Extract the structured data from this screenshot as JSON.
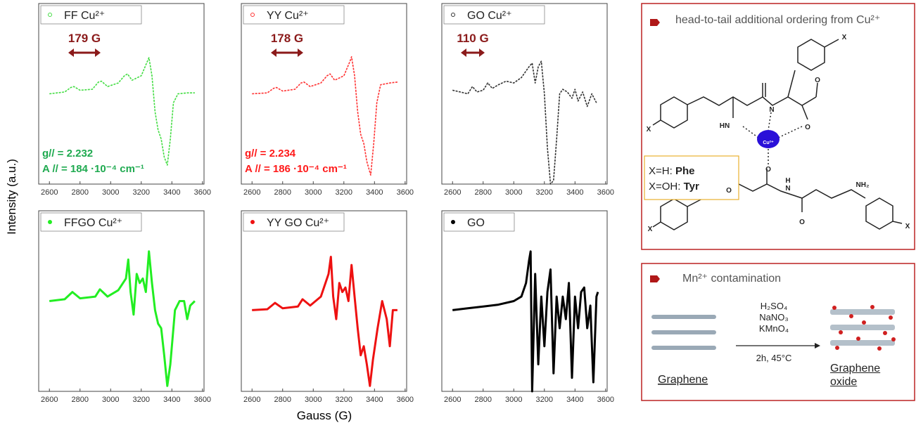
{
  "figure": {
    "ylabel": "Intensity (a.u.)",
    "xlabel": "Gauss (G)"
  },
  "chart_data": [
    {
      "type": "line",
      "legend": "FF Cu²⁺",
      "color": "#44dd44",
      "marker_fill": false,
      "spacing": "179 G",
      "g_factor": "g// = 2.232",
      "a_factor": "A // = 184 ·10⁻⁴ cm⁻¹",
      "annotation_color": "#1faa50",
      "x": [
        2600,
        2700,
        2740,
        2760,
        2800,
        2880,
        2920,
        2940,
        2980,
        3050,
        3090,
        3110,
        3140,
        3200,
        3240,
        3250,
        3270,
        3290,
        3310,
        3330,
        3350,
        3370,
        3390,
        3410,
        3440,
        3500,
        3550
      ],
      "values": [
        0,
        0.02,
        0.07,
        0.08,
        0.04,
        0.05,
        0.13,
        0.14,
        0.08,
        0.12,
        0.2,
        0.22,
        0.15,
        0.2,
        0.36,
        0.4,
        0.2,
        -0.2,
        -0.4,
        -0.5,
        -0.7,
        -0.79,
        -0.5,
        -0.1,
        0,
        0.01,
        0.01
      ],
      "xlim": [
        2530,
        3610
      ],
      "xticks": [
        2600,
        2800,
        3000,
        3200,
        3400,
        3600
      ],
      "ylim": [
        -1,
        1
      ]
    },
    {
      "type": "line",
      "legend": "YY Cu²⁺",
      "color": "#ff3333",
      "marker_fill": false,
      "spacing": "178 G",
      "g_factor": "g// = 2.234",
      "a_factor": "A // = 186 ·10⁻⁴ cm⁻¹",
      "annotation_color": "#ff1a1a",
      "x": [
        2600,
        2700,
        2740,
        2760,
        2800,
        2880,
        2920,
        2940,
        2980,
        3050,
        3090,
        3110,
        3140,
        3200,
        3240,
        3250,
        3270,
        3290,
        3310,
        3330,
        3350,
        3375,
        3395,
        3415,
        3440,
        3500,
        3550
      ],
      "values": [
        0,
        0.01,
        0.06,
        0.07,
        0.03,
        0.05,
        0.12,
        0.13,
        0.08,
        0.12,
        0.2,
        0.22,
        0.15,
        0.2,
        0.36,
        0.41,
        0.2,
        -0.2,
        -0.45,
        -0.55,
        -0.75,
        -0.9,
        -0.55,
        -0.1,
        0.1,
        0.12,
        0.13
      ],
      "xlim": [
        2530,
        3610
      ],
      "xticks": [
        2600,
        2800,
        3000,
        3200,
        3400,
        3600
      ],
      "ylim": [
        -1,
        1
      ]
    },
    {
      "type": "line",
      "legend": "GO Cu²⁺",
      "color": "#333333",
      "marker_fill": false,
      "spacing": "110 G",
      "annotation_color": "#8b1a1a",
      "x": [
        2600,
        2650,
        2700,
        2730,
        2760,
        2800,
        2830,
        2860,
        2900,
        2950,
        3000,
        3050,
        3100,
        3120,
        3140,
        3160,
        3180,
        3200,
        3220,
        3240,
        3260,
        3280,
        3300,
        3320,
        3350,
        3380,
        3400,
        3420,
        3450,
        3480,
        3510,
        3540
      ],
      "values": [
        0.04,
        0.02,
        0,
        0.08,
        0.02,
        0.04,
        0.12,
        0.06,
        0.1,
        0.14,
        0.12,
        0.18,
        0.3,
        0.34,
        0.12,
        0.3,
        0.36,
        0,
        -0.6,
        -1,
        -0.96,
        -0.5,
        0,
        0.05,
        0.02,
        -0.05,
        0.05,
        -0.08,
        0.02,
        -0.14,
        0,
        -0.1
      ],
      "xlim": [
        2530,
        3610
      ],
      "xticks": [
        2600,
        2800,
        3000,
        3200,
        3400,
        3600
      ],
      "ylim": [
        -1,
        1
      ]
    },
    {
      "type": "line",
      "legend": "FFGO Cu²⁺",
      "color": "#22ee22",
      "marker_fill": true,
      "x": [
        2600,
        2700,
        2750,
        2800,
        2900,
        2930,
        2980,
        3050,
        3100,
        3115,
        3130,
        3150,
        3170,
        3190,
        3210,
        3230,
        3250,
        3270,
        3290,
        3310,
        3330,
        3350,
        3370,
        3390,
        3420,
        3450,
        3480,
        3500,
        3520,
        3550
      ],
      "values": [
        0,
        0.02,
        0.1,
        0.03,
        0.05,
        0.13,
        0.05,
        0.12,
        0.25,
        0.46,
        0.1,
        -0.15,
        0.3,
        0.2,
        0.25,
        0.1,
        0.55,
        0.2,
        -0.1,
        -0.25,
        -0.3,
        -0.6,
        -0.94,
        -0.7,
        -0.1,
        0,
        0,
        -0.2,
        -0.05,
        0
      ],
      "xlim": [
        2530,
        3610
      ],
      "xticks": [
        2600,
        2800,
        3000,
        3200,
        3400,
        3600
      ],
      "ylim": [
        -1,
        1
      ]
    },
    {
      "type": "line",
      "legend": "YY GO Cu²⁺",
      "color": "#ee1111",
      "marker_fill": true,
      "x": [
        2600,
        2700,
        2750,
        2800,
        2900,
        2930,
        2980,
        3050,
        3100,
        3115,
        3130,
        3150,
        3170,
        3190,
        3210,
        3230,
        3250,
        3270,
        3290,
        3310,
        3330,
        3350,
        3370,
        3390,
        3420,
        3450,
        3480,
        3500,
        3520,
        3550
      ],
      "values": [
        -0.1,
        -0.09,
        -0.02,
        -0.08,
        -0.06,
        0.02,
        -0.05,
        0.05,
        0.3,
        0.49,
        0.05,
        -0.2,
        0.2,
        0.1,
        0.15,
        0,
        0.4,
        0.05,
        -0.3,
        -0.6,
        -0.5,
        -0.7,
        -0.94,
        -0.65,
        -0.3,
        0.0,
        -0.2,
        -0.5,
        -0.1,
        -0.1
      ],
      "xlim": [
        2530,
        3610
      ],
      "xticks": [
        2600,
        2800,
        3000,
        3200,
        3400,
        3600
      ],
      "ylim": [
        -1,
        1
      ]
    },
    {
      "type": "line",
      "legend": "GO",
      "color": "#000000",
      "marker_fill": true,
      "x": [
        2600,
        2700,
        2800,
        2900,
        3000,
        3050,
        3080,
        3100,
        3110,
        3120,
        3140,
        3160,
        3180,
        3200,
        3220,
        3240,
        3260,
        3280,
        3300,
        3320,
        3340,
        3360,
        3380,
        3400,
        3420,
        3440,
        3460,
        3480,
        3500,
        3520,
        3540,
        3550
      ],
      "values": [
        -0.1,
        -0.08,
        -0.06,
        -0.04,
        0,
        0.05,
        0.2,
        0.45,
        0.55,
        -1,
        0.3,
        -0.7,
        0.05,
        -0.5,
        0.1,
        0.35,
        -0.8,
        0.05,
        -0.3,
        0.05,
        -0.2,
        0.2,
        -0.85,
        0.05,
        -0.3,
        0.1,
        0.15,
        -0.3,
        -0.05,
        -0.9,
        0.05,
        0.1
      ],
      "xlim": [
        2530,
        3610
      ],
      "xticks": [
        2600,
        2800,
        3000,
        3200,
        3400,
        3600
      ],
      "ylim": [
        -1,
        1
      ]
    }
  ],
  "ordering_box": {
    "title": "head-to-tail additional ordering from Cu²⁺",
    "atoms": [
      "X",
      "X",
      "HN",
      "N",
      "O",
      "O",
      "Cu²⁺",
      "O",
      "O",
      "H",
      "N",
      "NH₂",
      "O",
      "X",
      "X"
    ],
    "key": [
      [
        "X=H: ",
        "Phe"
      ],
      [
        "X=OH: ",
        "Tyr"
      ]
    ]
  },
  "mn_box": {
    "title": "Mn²⁺ contamination",
    "reagents": [
      "H₂SO₄",
      "NaNO₃",
      "KMnO₄"
    ],
    "conditions": "2h, 45°C",
    "start": "Graphene",
    "product": "Graphene oxide"
  }
}
